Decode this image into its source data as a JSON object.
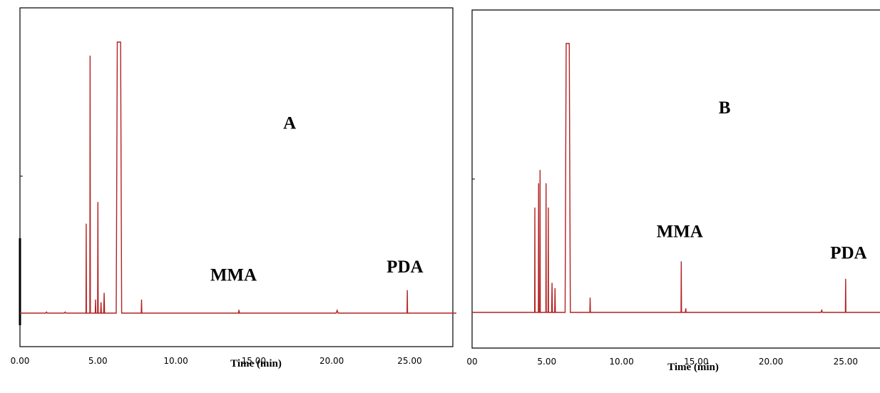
{
  "chart_data": [
    {
      "type": "line",
      "xlabel": "Time (min)",
      "xlim": [
        0,
        28
      ],
      "ylim": [
        0,
        1
      ],
      "grid": false,
      "color": "#b22222",
      "x_ticks": [
        0,
        5,
        10,
        15,
        20,
        25
      ],
      "x_tick_labels": [
        "0.00",
        "5.00",
        "10.00",
        "15.00",
        "20.00",
        "25.00"
      ],
      "annotations": [
        {
          "text": "A",
          "x": 17.3,
          "y": 0.68
        },
        {
          "text": "MMA",
          "x": 13.7,
          "y": 0.12
        },
        {
          "text": "PDA",
          "x": 24.7,
          "y": 0.15
        }
      ],
      "peaks": [
        {
          "x": 1.7,
          "y": 0.004,
          "w": 0.1
        },
        {
          "x": 2.9,
          "y": 0.004,
          "w": 0.1
        },
        {
          "x": 4.25,
          "y": 0.33,
          "w": 0.03
        },
        {
          "x": 4.5,
          "y": 0.95,
          "w": 0.035
        },
        {
          "x": 4.85,
          "y": 0.05,
          "w": 0.04
        },
        {
          "x": 5.0,
          "y": 0.41,
          "w": 0.04
        },
        {
          "x": 5.2,
          "y": 0.04,
          "w": 0.05
        },
        {
          "x": 5.4,
          "y": 0.075,
          "w": 0.06
        },
        {
          "x": 6.35,
          "y": 1.0,
          "w": 0.35,
          "flat": true
        },
        {
          "x": 7.8,
          "y": 0.05,
          "w": 0.04
        },
        {
          "x": 14.05,
          "y": 0.012,
          "w": 0.06
        },
        {
          "x": 20.35,
          "y": 0.01,
          "w": 0.12
        },
        {
          "x": 24.85,
          "y": 0.085,
          "w": 0.035
        }
      ]
    },
    {
      "type": "line",
      "xlabel": "Time (min)",
      "xlim": [
        0,
        27.3
      ],
      "ylim": [
        0,
        1
      ],
      "grid": false,
      "color": "#b22222",
      "x_ticks": [
        0,
        5,
        10,
        15,
        20,
        25
      ],
      "x_tick_labels": [
        "00",
        "5.00",
        "10.00",
        "15.00",
        "20.00",
        "25.00"
      ],
      "annotations": [
        {
          "text": "B",
          "x": 16.9,
          "y": 0.74
        },
        {
          "text": "MMA",
          "x": 13.9,
          "y": 0.28
        },
        {
          "text": "PDA",
          "x": 25.2,
          "y": 0.2
        }
      ],
      "peaks": [
        {
          "x": 4.2,
          "y": 0.39,
          "w": 0.03
        },
        {
          "x": 4.45,
          "y": 0.48,
          "w": 0.03
        },
        {
          "x": 4.55,
          "y": 0.53,
          "w": 0.03
        },
        {
          "x": 4.95,
          "y": 0.48,
          "w": 0.03
        },
        {
          "x": 5.1,
          "y": 0.39,
          "w": 0.03
        },
        {
          "x": 5.35,
          "y": 0.11,
          "w": 0.05
        },
        {
          "x": 5.55,
          "y": 0.09,
          "w": 0.05
        },
        {
          "x": 6.4,
          "y": 1.0,
          "w": 0.35,
          "flat": true
        },
        {
          "x": 7.9,
          "y": 0.055,
          "w": 0.04
        },
        {
          "x": 14.0,
          "y": 0.19,
          "w": 0.035
        },
        {
          "x": 14.3,
          "y": 0.015,
          "w": 0.05
        },
        {
          "x": 23.4,
          "y": 0.008,
          "w": 0.1
        },
        {
          "x": 25.0,
          "y": 0.125,
          "w": 0.035
        }
      ]
    }
  ]
}
